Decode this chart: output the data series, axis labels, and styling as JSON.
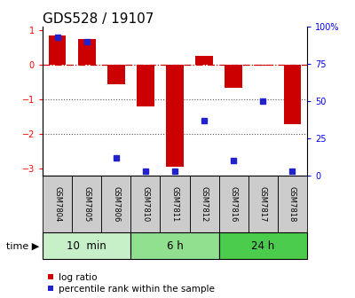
{
  "title": "GDS528 / 19107",
  "samples": [
    "GSM7804",
    "GSM7805",
    "GSM7806",
    "GSM7810",
    "GSM7811",
    "GSM7812",
    "GSM7816",
    "GSM7817",
    "GSM7818"
  ],
  "log_ratios": [
    0.85,
    0.75,
    -0.55,
    -1.2,
    -2.95,
    0.25,
    -0.65,
    -0.02,
    -1.7
  ],
  "percentile_ranks": [
    93,
    90,
    12,
    3,
    3,
    37,
    10,
    50,
    3
  ],
  "groups": [
    {
      "label": "10  min",
      "samples": [
        0,
        1,
        2
      ],
      "color": "#c8f0c8"
    },
    {
      "label": "6 h",
      "samples": [
        3,
        4,
        5
      ],
      "color": "#90e090"
    },
    {
      "label": "24 h",
      "samples": [
        6,
        7,
        8
      ],
      "color": "#4ccc4c"
    }
  ],
  "ylim_left": [
    -3.2,
    1.1
  ],
  "ylim_right": [
    0,
    100
  ],
  "yticks_left": [
    -3,
    -2,
    -1,
    0,
    1
  ],
  "yticks_right": [
    0,
    25,
    50,
    75,
    100
  ],
  "ytick_labels_right": [
    "0",
    "25",
    "50",
    "75",
    "100%"
  ],
  "bar_color": "#cc0000",
  "dot_color": "#2222cc",
  "zeroline_color": "#cc0000",
  "gridline_color": "#555555",
  "sample_box_color": "#cccccc",
  "bg_color": "#ffffff",
  "title_fontsize": 11,
  "tick_fontsize": 7,
  "sample_fontsize": 6,
  "legend_fontsize": 7.5,
  "group_label_fontsize": 8.5,
  "time_label_fontsize": 8
}
